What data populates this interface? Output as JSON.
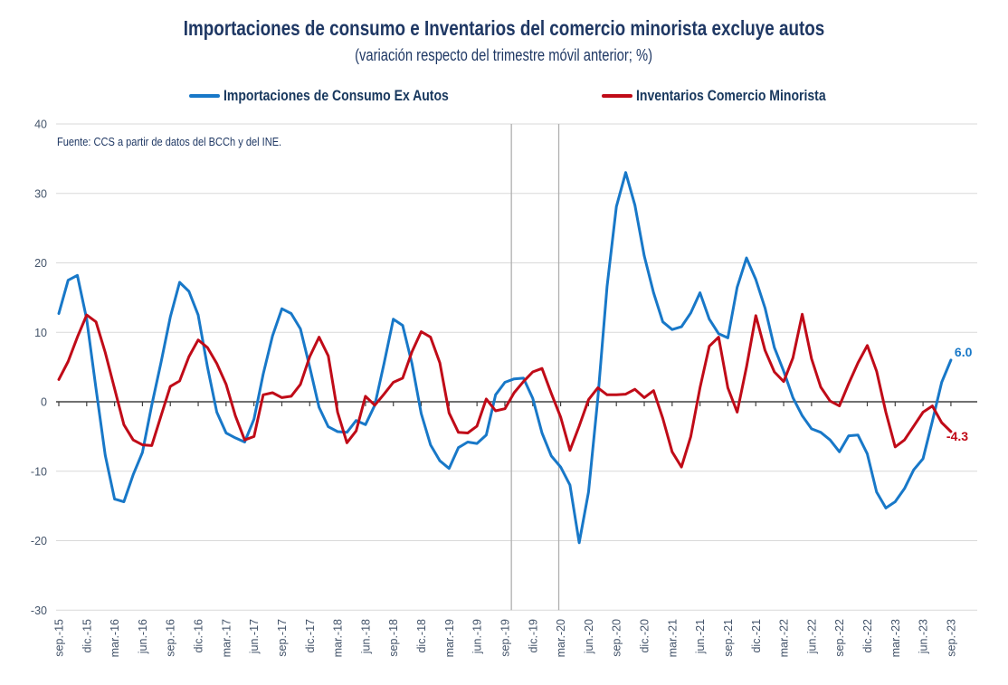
{
  "header": {
    "title": "Importaciones de consumo e Inventarios del comercio minorista excluye autos",
    "subtitle": "(variación respecto del trimestre móvil anterior; %)"
  },
  "source_note": "Fuente: CCS a partir de datos del BCCh y del INE.",
  "legend": {
    "imports_label": "Importaciones de Consumo Ex Autos",
    "inventories_label": "Inventarios Comercio Minorista"
  },
  "colors": {
    "imports_blue": "#1878C8",
    "inventories_red": "#C00B18",
    "title_navy": "#1F3864",
    "axis_label": "#44546A",
    "gridline": "#D9D9D9",
    "zero_axis": "#404040",
    "reference_line": "#AFAFAF"
  },
  "end_labels": {
    "imports": "6.0",
    "inventories": "-4.3"
  },
  "chart_data": {
    "type": "line",
    "title": "Importaciones de consumo e Inventarios del comercio minorista excluye autos",
    "subtitle": "(variación respecto del trimestre móvil anterior; %)",
    "ylabel": "",
    "xlabel": "",
    "ylim": [
      -30,
      40
    ],
    "y_ticks": [
      40,
      30,
      20,
      10,
      0,
      -10,
      -20,
      -30
    ],
    "grid": "horizontal",
    "legend_position": "top",
    "n_points": 97,
    "x_start_month": "sep.-15",
    "x_end_month": "sep.-23",
    "months_per_tick": 3,
    "x_tick_labels": [
      "sep.-15",
      "dic.-15",
      "mar.-16",
      "jun.-16",
      "sep.-16",
      "dic.-16",
      "mar.-17",
      "jun.-17",
      "sep.-17",
      "dic.-17",
      "mar.-18",
      "jun.-18",
      "sep.-18",
      "dic.-18",
      "mar.-19",
      "jun.-19",
      "sep.-19",
      "dic.-19",
      "mar.-20",
      "jun.-20",
      "sep.-20",
      "dic.-20",
      "mar.-21",
      "jun.-21",
      "sep.-21",
      "dic.-21",
      "mar.-22",
      "jun.-22",
      "sep.-22",
      "dic.-22",
      "mar.-23",
      "jun.-23",
      "sep.-23"
    ],
    "reference_lines_month_index": [
      48.7,
      53.8
    ],
    "series": [
      {
        "name": "Importaciones de Consumo Ex Autos",
        "color": "#1878C8",
        "end_label": "6.0",
        "values": [
          12.7,
          17.5,
          18.2,
          11.9,
          1.9,
          -7.7,
          -14.0,
          -14.4,
          -10.5,
          -7.3,
          -0.5,
          5.7,
          12.2,
          17.2,
          15.9,
          12.5,
          5.0,
          -1.5,
          -4.5,
          -5.2,
          -5.8,
          -2.5,
          4.0,
          9.5,
          13.4,
          12.7,
          10.5,
          5.0,
          -0.8,
          -3.6,
          -4.3,
          -4.4,
          -2.7,
          -3.3,
          -0.5,
          5.5,
          11.9,
          11.0,
          5.5,
          -1.7,
          -6.2,
          -8.5,
          -9.6,
          -6.6,
          -5.8,
          -6.0,
          -4.8,
          1.0,
          2.8,
          3.3,
          3.4,
          0.5,
          -4.5,
          -7.8,
          -9.4,
          -12.0,
          -20.3,
          -13.0,
          0.5,
          16.6,
          28.1,
          33.0,
          28.3,
          21.0,
          15.7,
          11.5,
          10.4,
          10.8,
          12.8,
          15.7,
          11.9,
          9.8,
          9.2,
          16.5,
          20.7,
          17.6,
          13.5,
          7.8,
          4.4,
          0.6,
          -2.0,
          -3.9,
          -4.4,
          -5.5,
          -7.2,
          -4.9,
          -4.8,
          -7.5,
          -13.0,
          -15.3,
          -14.4,
          -12.5,
          -9.8,
          -8.2,
          -2.8,
          2.8,
          6.0
        ]
      },
      {
        "name": "Inventarios Comercio Minorista",
        "color": "#C00B18",
        "end_label": "-4.3",
        "values": [
          3.2,
          5.8,
          9.3,
          12.5,
          11.5,
          7.1,
          1.9,
          -3.3,
          -5.5,
          -6.2,
          -6.3,
          -2.0,
          2.2,
          3.0,
          6.5,
          8.9,
          7.8,
          5.5,
          2.5,
          -2.0,
          -5.5,
          -5.0,
          1.0,
          1.3,
          0.6,
          0.8,
          2.5,
          6.5,
          9.3,
          6.6,
          -1.5,
          -5.9,
          -4.2,
          0.8,
          -0.5,
          1.1,
          2.8,
          3.4,
          7.2,
          10.1,
          9.3,
          5.6,
          -1.6,
          -4.4,
          -4.5,
          -3.5,
          0.4,
          -1.3,
          -1.0,
          1.3,
          2.9,
          4.3,
          4.8,
          1.2,
          -2.2,
          -7.0,
          -3.5,
          0.3,
          2.0,
          1.0,
          1.0,
          1.1,
          1.8,
          0.6,
          1.6,
          -2.4,
          -7.2,
          -9.4,
          -5.0,
          2.0,
          8.0,
          9.3,
          2.0,
          -1.5,
          5.0,
          12.4,
          7.4,
          4.3,
          2.9,
          6.3,
          12.6,
          6.2,
          2.1,
          0.1,
          -0.6,
          2.6,
          5.6,
          8.1,
          4.4,
          -1.5,
          -6.5,
          -5.5,
          -3.5,
          -1.5,
          -0.6,
          -3.0,
          -4.3
        ]
      }
    ]
  }
}
